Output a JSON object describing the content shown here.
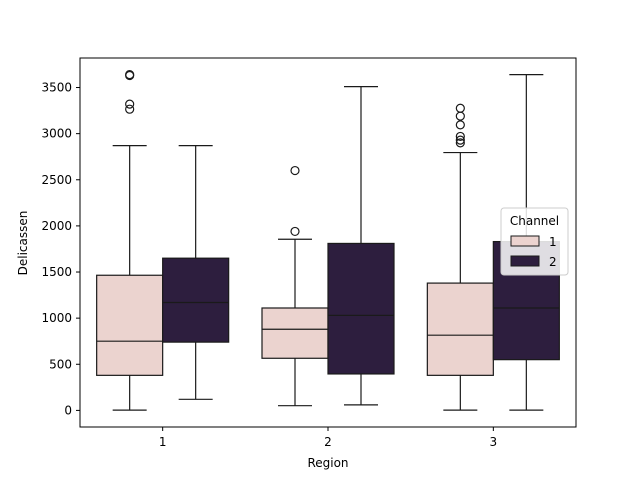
{
  "chart_data": {
    "type": "box",
    "xlabel": "Region",
    "ylabel": "Delicassen",
    "categories": [
      "1",
      "2",
      "3"
    ],
    "ylim": [
      -180,
      3820
    ],
    "yticks": [
      0,
      500,
      1000,
      1500,
      2000,
      2500,
      3000,
      3500
    ],
    "legend": {
      "title": "Channel",
      "position": "right"
    },
    "series": [
      {
        "name": "1",
        "color": "#ebd3cf",
        "boxes": [
          {
            "q1": 380,
            "median": 750,
            "q3": 1465,
            "whisker_low": 3,
            "whisker_high": 2870,
            "outliers": [
              3265,
              3320,
              3630,
              3640
            ]
          },
          {
            "q1": 565,
            "median": 880,
            "q3": 1110,
            "whisker_low": 51,
            "whisker_high": 1855,
            "outliers": [
              1940,
              2600
            ]
          },
          {
            "q1": 380,
            "median": 815,
            "q3": 1380,
            "whisker_low": 3,
            "whisker_high": 2795,
            "outliers": [
              2900,
              2930,
              2970,
              3095,
              3190,
              3275
            ]
          }
        ]
      },
      {
        "name": "2",
        "color": "#2d1e3e",
        "boxes": [
          {
            "q1": 740,
            "median": 1170,
            "q3": 1650,
            "whisker_low": 120,
            "whisker_high": 2870,
            "outliers": []
          },
          {
            "q1": 395,
            "median": 1030,
            "q3": 1810,
            "whisker_low": 60,
            "whisker_high": 3510,
            "outliers": []
          },
          {
            "q1": 550,
            "median": 1110,
            "q3": 1830,
            "whisker_low": 3,
            "whisker_high": 3640,
            "outliers": []
          }
        ]
      }
    ]
  }
}
